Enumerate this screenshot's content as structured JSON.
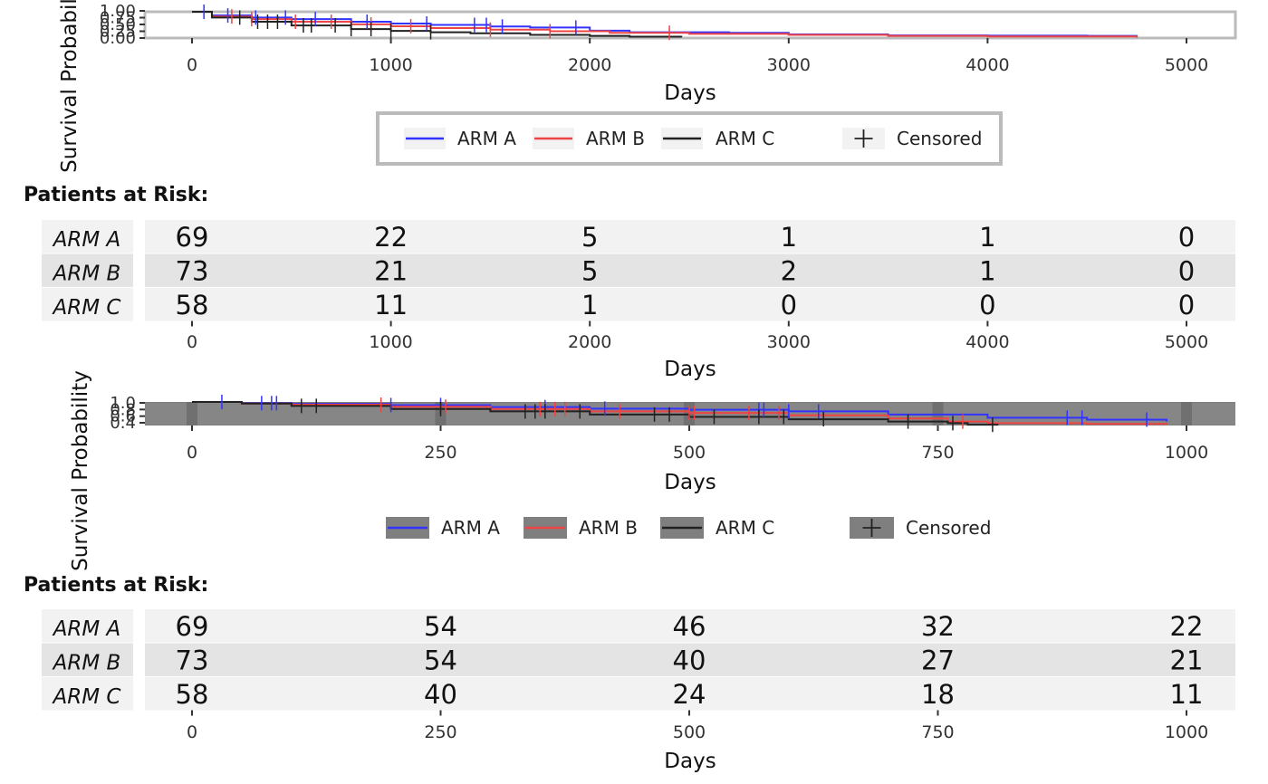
{
  "colors": {
    "arm_a": "#3333ff",
    "arm_b": "#ee4444",
    "arm_c": "#222222"
  },
  "risk_title": "Patients at Risk:",
  "chart_data": [
    {
      "type": "line",
      "name": "km-plot-1",
      "xlabel": "Days",
      "ylabel": "Survival Probability",
      "xlim": [
        0,
        5000
      ],
      "ylim": [
        0,
        1
      ],
      "x_ticks": [
        "0",
        "1000",
        "2000",
        "3000",
        "4000",
        "5000"
      ],
      "x_tick_values": [
        0,
        1000,
        2000,
        3000,
        4000,
        5000
      ],
      "y_ticks": [
        "0.00",
        "0.25",
        "0.50",
        "0.75",
        "1.00"
      ],
      "y_tick_values": [
        0,
        0.25,
        0.5,
        0.75,
        1
      ],
      "legend_position": "bottom",
      "legend": [
        "ARM A",
        "ARM B",
        "ARM C",
        "Censored"
      ],
      "series": [
        {
          "name": "ARM A",
          "x": [
            0,
            100,
            300,
            500,
            800,
            1000,
            1200,
            1500,
            1700,
            2000,
            2200,
            2700,
            3000,
            3500,
            4000,
            4500,
            4750
          ],
          "y": [
            1,
            0.86,
            0.78,
            0.72,
            0.62,
            0.55,
            0.5,
            0.44,
            0.4,
            0.28,
            0.22,
            0.2,
            0.14,
            0.1,
            0.09,
            0.08,
            0.02
          ]
        },
        {
          "name": "ARM B",
          "x": [
            0,
            100,
            300,
            500,
            800,
            1000,
            1200,
            1500,
            1800,
            2100,
            2500,
            3000,
            3500,
            4000,
            4750
          ],
          "y": [
            1,
            0.82,
            0.72,
            0.62,
            0.52,
            0.45,
            0.38,
            0.32,
            0.26,
            0.2,
            0.16,
            0.12,
            0.08,
            0.06,
            0.04
          ]
        },
        {
          "name": "ARM C",
          "x": [
            0,
            100,
            300,
            500,
            800,
            1000,
            1200,
            1400,
            1700,
            2000,
            2200,
            2460
          ],
          "y": [
            1,
            0.78,
            0.62,
            0.48,
            0.34,
            0.27,
            0.22,
            0.18,
            0.12,
            0.08,
            0.05,
            0.02
          ]
        }
      ],
      "censored": [
        {
          "arm": "ARM A",
          "x": [
            60,
            180,
            320,
            470,
            620,
            880,
            1180,
            1420,
            1480,
            1560,
            1930
          ]
        },
        {
          "arm": "ARM B",
          "x": [
            200,
            300,
            520,
            700,
            900,
            1100,
            1500,
            1800,
            2400
          ]
        },
        {
          "arm": "ARM C",
          "x": [
            240,
            330,
            380,
            430,
            560,
            600,
            720,
            800,
            900,
            1000,
            1200
          ]
        }
      ],
      "risk_table": {
        "arms": [
          "ARM A",
          "ARM B",
          "ARM C"
        ],
        "rows": [
          [
            "69",
            "22",
            "5",
            "1",
            "1",
            "0"
          ],
          [
            "73",
            "21",
            "5",
            "2",
            "1",
            "0"
          ],
          [
            "58",
            "11",
            "1",
            "0",
            "0",
            "0"
          ]
        ],
        "xlabel": "Days"
      }
    },
    {
      "type": "line",
      "name": "km-plot-2",
      "xlabel": "Days",
      "ylabel": "Survival Probability",
      "xlim": [
        0,
        1000
      ],
      "ylim": [
        0.4,
        1
      ],
      "x_ticks": [
        "0",
        "250",
        "500",
        "750",
        "1000"
      ],
      "x_tick_values": [
        0,
        250,
        500,
        750,
        1000
      ],
      "y_ticks": [
        "0.4",
        "0.6",
        "0.8",
        "1.0"
      ],
      "y_tick_values": [
        0.4,
        0.6,
        0.8,
        1.0
      ],
      "legend_position": "bottom",
      "legend": [
        "ARM A",
        "ARM B",
        "ARM C",
        "Censored"
      ],
      "series": [
        {
          "name": "ARM A",
          "x": [
            0,
            50,
            100,
            200,
            300,
            400,
            500,
            600,
            700,
            800,
            900,
            980
          ],
          "y": [
            1,
            0.97,
            0.95,
            0.92,
            0.87,
            0.83,
            0.8,
            0.76,
            0.68,
            0.6,
            0.55,
            0.5
          ]
        },
        {
          "name": "ARM B",
          "x": [
            0,
            50,
            100,
            200,
            300,
            400,
            500,
            600,
            700,
            760,
            800,
            900,
            980
          ],
          "y": [
            1,
            0.96,
            0.93,
            0.88,
            0.82,
            0.76,
            0.72,
            0.66,
            0.58,
            0.5,
            0.46,
            0.44,
            0.42
          ]
        },
        {
          "name": "ARM C",
          "x": [
            0,
            50,
            100,
            200,
            300,
            400,
            500,
            600,
            700,
            760,
            780,
            810
          ],
          "y": [
            1,
            0.96,
            0.9,
            0.82,
            0.76,
            0.68,
            0.62,
            0.56,
            0.5,
            0.46,
            0.42,
            0.4
          ]
        }
      ],
      "censored": [
        {
          "arm": "ARM A",
          "x": [
            30,
            70,
            80,
            85,
            200,
            250,
            355,
            415,
            570,
            575,
            600,
            630,
            880,
            895,
            960
          ]
        },
        {
          "arm": "ARM B",
          "x": [
            190,
            255,
            350,
            365,
            375,
            430,
            500,
            505,
            560,
            590,
            775
          ]
        },
        {
          "arm": "ARM C",
          "x": [
            110,
            125,
            250,
            335,
            345,
            355,
            390,
            465,
            480,
            525,
            570,
            595,
            635,
            720,
            765,
            805
          ]
        }
      ],
      "risk_table": {
        "arms": [
          "ARM A",
          "ARM B",
          "ARM C"
        ],
        "rows": [
          [
            "69",
            "54",
            "46",
            "32",
            "22"
          ],
          [
            "73",
            "54",
            "40",
            "27",
            "21"
          ],
          [
            "58",
            "40",
            "24",
            "18",
            "11"
          ]
        ],
        "xlabel": "Days"
      }
    }
  ]
}
